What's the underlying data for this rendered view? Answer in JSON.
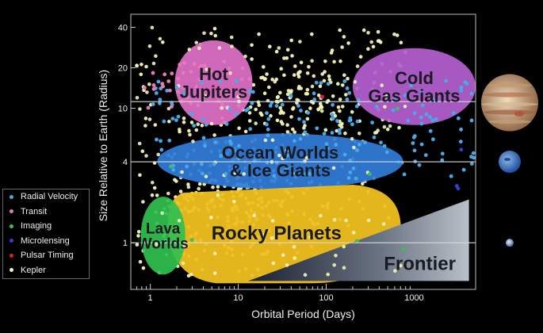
{
  "chart_data": {
    "type": "scatter",
    "title": "",
    "xlabel": "Orbital Period (Days)",
    "ylabel": "Size Relative to Earth (Radius)",
    "xscale": "log",
    "yscale": "log",
    "xlim": [
      0.6,
      5000
    ],
    "ylim": [
      0.45,
      50
    ],
    "x_ticks": [
      {
        "value": 1,
        "label": "1"
      },
      {
        "value": 10,
        "label": "10"
      },
      {
        "value": 100,
        "label": "100"
      },
      {
        "value": 1000,
        "label": "1000"
      }
    ],
    "y_ticks": [
      {
        "value": 1,
        "label": "1"
      },
      {
        "value": 4,
        "label": "4"
      },
      {
        "value": 10,
        "label": "10"
      },
      {
        "value": 20,
        "label": "20"
      },
      {
        "value": 40,
        "label": "40"
      }
    ],
    "reference_lines_y": [
      1,
      4,
      11.2
    ],
    "legend": {
      "placement": "left",
      "entries": [
        {
          "name": "Radial Velocity",
          "color": "#4aa8e8"
        },
        {
          "name": "Transit",
          "color": "#e878b8"
        },
        {
          "name": "Imaging",
          "color": "#3cc05a"
        },
        {
          "name": "Microlensing",
          "color": "#3a3ad8"
        },
        {
          "name": "Pulsar Timing",
          "color": "#d82030"
        },
        {
          "name": "Kepler",
          "color": "#f4f4b8"
        }
      ]
    },
    "regions": [
      {
        "label": [
          "Hot",
          "Jupiters"
        ],
        "shape": "ellipse",
        "color": "#e070c8",
        "x_range": [
          1.9,
          14.5
        ],
        "y_range": [
          7.5,
          32
        ]
      },
      {
        "label": [
          "Cold",
          "Gas Giants"
        ],
        "shape": "ellipse",
        "color": "#b460d0",
        "x_range": [
          200,
          5000
        ],
        "y_range": [
          7.5,
          28
        ]
      },
      {
        "label": [
          "Ocean Worlds",
          "& Ice Giants"
        ],
        "shape": "ellipse",
        "color": "#2f7cd8",
        "x_range": [
          1.2,
          750
        ],
        "y_range": [
          2.5,
          6.5
        ]
      },
      {
        "label": [
          "Rocky Planets"
        ],
        "shape": "blob",
        "color": "#f0c020",
        "x_range": [
          1.6,
          700
        ],
        "y_range": [
          0.5,
          2.7
        ]
      },
      {
        "label": [
          "Lava",
          "Worlds"
        ],
        "shape": "ellipse",
        "color": "#30c050",
        "x_range": [
          0.78,
          2.5
        ],
        "y_range": [
          0.58,
          2.2
        ]
      },
      {
        "label": [
          "Frontier"
        ],
        "shape": "triangle",
        "color": "#9aa3ad",
        "x_range": [
          13,
          4200
        ],
        "y_range": [
          0.52,
          2.1
        ]
      }
    ],
    "point_density": [
      {
        "method": "Kepler",
        "count": 1000,
        "x_range": [
          0.7,
          800
        ],
        "y_range": [
          0.55,
          40
        ],
        "concentrations": [
          {
            "x": 10,
            "y": 1.6
          },
          {
            "x": 8,
            "y": 2.7
          },
          {
            "x": 40,
            "y": 12
          }
        ]
      },
      {
        "method": "Radial Velocity",
        "count": 170,
        "x_range": [
          1,
          5000
        ],
        "y_range": [
          3,
          16
        ]
      },
      {
        "method": "Transit",
        "count": 30,
        "x_range": [
          0.8,
          8
        ],
        "y_range": [
          10,
          22
        ]
      },
      {
        "method": "Imaging",
        "count": 6,
        "x_range": [
          1.6,
          1000
        ],
        "y_range": [
          0.7,
          15
        ]
      },
      {
        "method": "Microlensing",
        "count": 3,
        "x_range": [
          2500,
          3500
        ],
        "y_range": [
          2.5,
          6
        ]
      },
      {
        "method": "Pulsar Timing",
        "count": 1,
        "x_range": [
          80,
          120
        ],
        "y_range": [
          12,
          13
        ]
      }
    ],
    "planet_images": [
      {
        "name": "jupiter",
        "y": 11
      },
      {
        "name": "neptune",
        "y": 4
      },
      {
        "name": "earth",
        "y": 1
      }
    ]
  }
}
